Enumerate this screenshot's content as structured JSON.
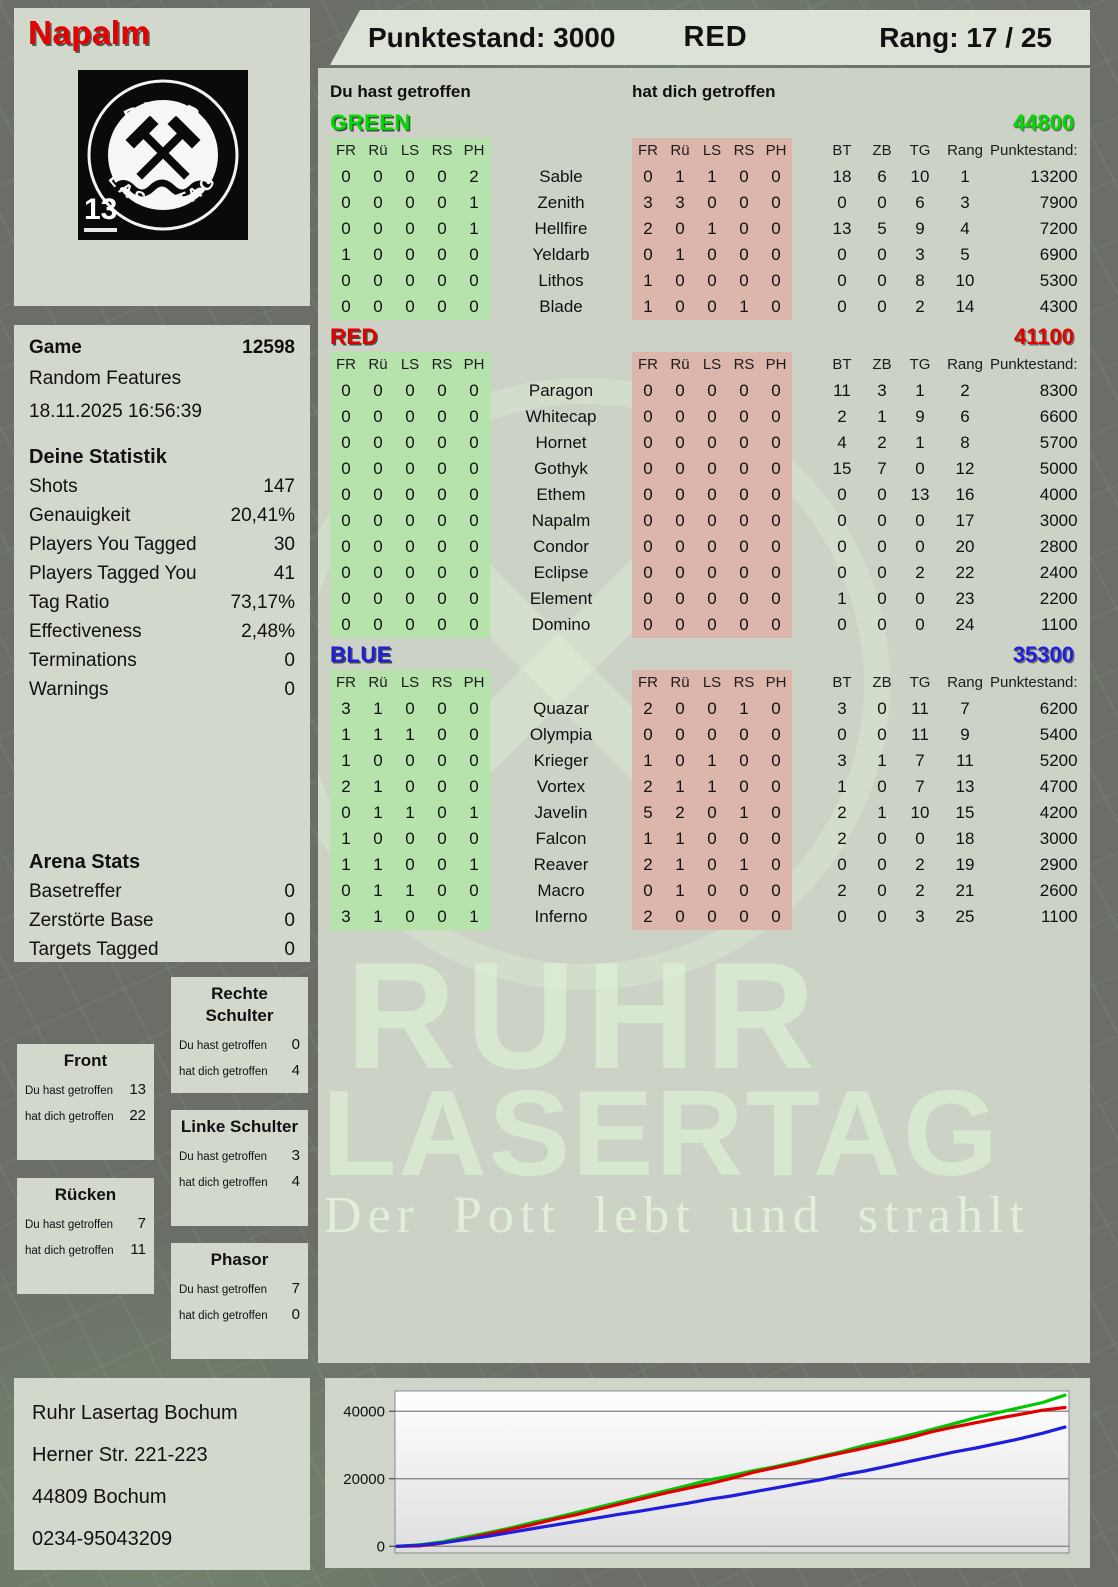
{
  "player": {
    "name": "Napalm",
    "badge": "13"
  },
  "logo": {
    "arc_top": "RUHR",
    "arc_bottom": "LASERTAG"
  },
  "header": {
    "score_label": "Punktestand:",
    "score_value": "3000",
    "team": "RED",
    "rank_label": "Rang:",
    "rank_value": "17 / 25"
  },
  "labels": {
    "you_hit": "Du hast getroffen",
    "hit_you": "hat dich getroffen"
  },
  "table": {
    "hit_cols": [
      "FR",
      "Rü",
      "LS",
      "RS",
      "PH"
    ],
    "stat_cols": [
      "BT",
      "ZB",
      "TG",
      "Rang",
      "Punktestand:"
    ]
  },
  "teams": [
    {
      "name": "GREEN",
      "color": "#00dc00",
      "total": "44800",
      "players": [
        {
          "name": "Sable",
          "you": [
            0,
            0,
            0,
            0,
            2
          ],
          "them": [
            0,
            1,
            1,
            0,
            0
          ],
          "stats": [
            18,
            6,
            10,
            1,
            "13200"
          ]
        },
        {
          "name": "Zenith",
          "you": [
            0,
            0,
            0,
            0,
            1
          ],
          "them": [
            3,
            3,
            0,
            0,
            0
          ],
          "stats": [
            0,
            0,
            6,
            3,
            "7900"
          ]
        },
        {
          "name": "Hellfire",
          "you": [
            0,
            0,
            0,
            0,
            1
          ],
          "them": [
            2,
            0,
            1,
            0,
            0
          ],
          "stats": [
            13,
            5,
            9,
            4,
            "7200"
          ]
        },
        {
          "name": "Yeldarb",
          "you": [
            1,
            0,
            0,
            0,
            0
          ],
          "them": [
            0,
            1,
            0,
            0,
            0
          ],
          "stats": [
            0,
            0,
            3,
            5,
            "6900"
          ]
        },
        {
          "name": "Lithos",
          "you": [
            0,
            0,
            0,
            0,
            0
          ],
          "them": [
            1,
            0,
            0,
            0,
            0
          ],
          "stats": [
            0,
            0,
            8,
            10,
            "5300"
          ]
        },
        {
          "name": "Blade",
          "you": [
            0,
            0,
            0,
            0,
            0
          ],
          "them": [
            1,
            0,
            0,
            1,
            0
          ],
          "stats": [
            0,
            0,
            2,
            14,
            "4300"
          ]
        }
      ]
    },
    {
      "name": "RED",
      "color": "#e10000",
      "total": "41100",
      "players": [
        {
          "name": "Paragon",
          "you": [
            0,
            0,
            0,
            0,
            0
          ],
          "them": [
            0,
            0,
            0,
            0,
            0
          ],
          "stats": [
            11,
            3,
            1,
            2,
            "8300"
          ]
        },
        {
          "name": "Whitecap",
          "you": [
            0,
            0,
            0,
            0,
            0
          ],
          "them": [
            0,
            0,
            0,
            0,
            0
          ],
          "stats": [
            2,
            1,
            9,
            6,
            "6600"
          ]
        },
        {
          "name": "Hornet",
          "you": [
            0,
            0,
            0,
            0,
            0
          ],
          "them": [
            0,
            0,
            0,
            0,
            0
          ],
          "stats": [
            4,
            2,
            1,
            8,
            "5700"
          ]
        },
        {
          "name": "Gothyk",
          "you": [
            0,
            0,
            0,
            0,
            0
          ],
          "them": [
            0,
            0,
            0,
            0,
            0
          ],
          "stats": [
            15,
            7,
            0,
            12,
            "5000"
          ]
        },
        {
          "name": "Ethem",
          "you": [
            0,
            0,
            0,
            0,
            0
          ],
          "them": [
            0,
            0,
            0,
            0,
            0
          ],
          "stats": [
            0,
            0,
            13,
            16,
            "4000"
          ]
        },
        {
          "name": "Napalm",
          "you": [
            0,
            0,
            0,
            0,
            0
          ],
          "them": [
            0,
            0,
            0,
            0,
            0
          ],
          "stats": [
            0,
            0,
            0,
            17,
            "3000"
          ]
        },
        {
          "name": "Condor",
          "you": [
            0,
            0,
            0,
            0,
            0
          ],
          "them": [
            0,
            0,
            0,
            0,
            0
          ],
          "stats": [
            0,
            0,
            0,
            20,
            "2800"
          ]
        },
        {
          "name": "Eclipse",
          "you": [
            0,
            0,
            0,
            0,
            0
          ],
          "them": [
            0,
            0,
            0,
            0,
            0
          ],
          "stats": [
            0,
            0,
            2,
            22,
            "2400"
          ]
        },
        {
          "name": "Element",
          "you": [
            0,
            0,
            0,
            0,
            0
          ],
          "them": [
            0,
            0,
            0,
            0,
            0
          ],
          "stats": [
            1,
            0,
            0,
            23,
            "2200"
          ]
        },
        {
          "name": "Domino",
          "you": [
            0,
            0,
            0,
            0,
            0
          ],
          "them": [
            0,
            0,
            0,
            0,
            0
          ],
          "stats": [
            0,
            0,
            0,
            24,
            "1100"
          ]
        }
      ]
    },
    {
      "name": "BLUE",
      "color": "#1e1edc",
      "total": "35300",
      "players": [
        {
          "name": "Quazar",
          "you": [
            3,
            1,
            0,
            0,
            0
          ],
          "them": [
            2,
            0,
            0,
            1,
            0
          ],
          "stats": [
            3,
            0,
            11,
            7,
            "6200"
          ]
        },
        {
          "name": "Olympia",
          "you": [
            1,
            1,
            1,
            0,
            0
          ],
          "them": [
            0,
            0,
            0,
            0,
            0
          ],
          "stats": [
            0,
            0,
            11,
            9,
            "5400"
          ]
        },
        {
          "name": "Krieger",
          "you": [
            1,
            0,
            0,
            0,
            0
          ],
          "them": [
            1,
            0,
            1,
            0,
            0
          ],
          "stats": [
            3,
            1,
            7,
            11,
            "5200"
          ]
        },
        {
          "name": "Vortex",
          "you": [
            2,
            1,
            0,
            0,
            0
          ],
          "them": [
            2,
            1,
            1,
            0,
            0
          ],
          "stats": [
            1,
            0,
            7,
            13,
            "4700"
          ]
        },
        {
          "name": "Javelin",
          "you": [
            0,
            1,
            1,
            0,
            1
          ],
          "them": [
            5,
            2,
            0,
            1,
            0
          ],
          "stats": [
            2,
            1,
            10,
            15,
            "4200"
          ]
        },
        {
          "name": "Falcon",
          "you": [
            1,
            0,
            0,
            0,
            0
          ],
          "them": [
            1,
            1,
            0,
            0,
            0
          ],
          "stats": [
            2,
            0,
            0,
            18,
            "3000"
          ]
        },
        {
          "name": "Reaver",
          "you": [
            1,
            1,
            0,
            0,
            1
          ],
          "them": [
            2,
            1,
            0,
            1,
            0
          ],
          "stats": [
            0,
            0,
            2,
            19,
            "2900"
          ]
        },
        {
          "name": "Macro",
          "you": [
            0,
            1,
            1,
            0,
            0
          ],
          "them": [
            0,
            1,
            0,
            0,
            0
          ],
          "stats": [
            2,
            0,
            2,
            21,
            "2600"
          ]
        },
        {
          "name": "Inferno",
          "you": [
            3,
            1,
            0,
            0,
            1
          ],
          "them": [
            2,
            0,
            0,
            0,
            0
          ],
          "stats": [
            0,
            0,
            3,
            25,
            "1100"
          ]
        }
      ]
    }
  ],
  "game": {
    "label": "Game",
    "number": "12598",
    "mode": "Random Features",
    "datetime": "18.11.2025 16:56:39"
  },
  "deine_statistik": {
    "title": "Deine Statistik",
    "rows": [
      {
        "label": "Shots",
        "value": "147"
      },
      {
        "label": "Genauigkeit",
        "value": "20,41%"
      },
      {
        "label": "Players You Tagged",
        "value": "30"
      },
      {
        "label": "Players Tagged You",
        "value": "41"
      },
      {
        "label": "Tag Ratio",
        "value": "73,17%"
      },
      {
        "label": "Effectiveness",
        "value": "2,48%"
      },
      {
        "label": "Terminations",
        "value": "0"
      },
      {
        "label": "Warnings",
        "value": "0"
      }
    ]
  },
  "arena_stats": {
    "title": "Arena Stats",
    "rows": [
      {
        "label": "Basetreffer",
        "value": "0"
      },
      {
        "label": "Zerstörte Base",
        "value": "0"
      },
      {
        "label": "Targets Tagged",
        "value": "0"
      }
    ]
  },
  "body_parts": [
    {
      "title": "Front",
      "you": "13",
      "them": "22"
    },
    {
      "title": "Rücken",
      "you": "7",
      "them": "11"
    },
    {
      "title": "Rechte Schulter",
      "you": "0",
      "them": "4"
    },
    {
      "title": "Linke Schulter",
      "you": "3",
      "them": "4"
    },
    {
      "title": "Phasor",
      "you": "7",
      "them": "0"
    }
  ],
  "address": [
    "Ruhr Lasertag Bochum",
    "Herner Str. 221-223",
    "44809 Bochum",
    "0234-95043209"
  ],
  "watermark": {
    "line1": "RUHR",
    "line2": "LASERTAG",
    "tagline": "Der Pott lebt und strahlt"
  },
  "colors": {
    "team_green": "#00dc00",
    "team_red": "#e10000",
    "team_blue": "#1e1edc",
    "cell_green": "#b6e2ab",
    "cell_red": "#dcb5ab"
  },
  "chart_data": {
    "type": "line",
    "title": "",
    "xlabel": "",
    "ylabel": "",
    "yticks": [
      0,
      20000,
      40000
    ],
    "ylim": [
      0,
      46000
    ],
    "grid": true,
    "legend_position": "none",
    "series": [
      {
        "name": "GREEN",
        "color": "#00c800",
        "values": [
          0,
          400,
          1300,
          2600,
          3900,
          5300,
          6900,
          8300,
          9900,
          11500,
          13100,
          14700,
          16300,
          17900,
          19600,
          20900,
          22400,
          23600,
          25100,
          26600,
          28100,
          29900,
          31300,
          32900,
          34600,
          36300,
          38100,
          39600,
          41100,
          42600,
          44800
        ]
      },
      {
        "name": "RED",
        "color": "#e10000",
        "values": [
          0,
          100,
          900,
          2100,
          3500,
          4900,
          6300,
          7900,
          9300,
          10900,
          12500,
          14100,
          15700,
          17100,
          18500,
          20100,
          21900,
          23300,
          24700,
          26300,
          27700,
          29100,
          30600,
          32100,
          33900,
          35300,
          36600,
          37900,
          39100,
          40300,
          41100
        ]
      },
      {
        "name": "BLUE",
        "color": "#1e1edc",
        "values": [
          0,
          300,
          1000,
          1900,
          2900,
          4000,
          5100,
          6200,
          7300,
          8400,
          9500,
          10500,
          11600,
          12700,
          13900,
          14900,
          16100,
          17300,
          18500,
          19700,
          21100,
          22300,
          23700,
          25100,
          26500,
          27900,
          29100,
          30500,
          31900,
          33500,
          35300
        ]
      }
    ]
  }
}
